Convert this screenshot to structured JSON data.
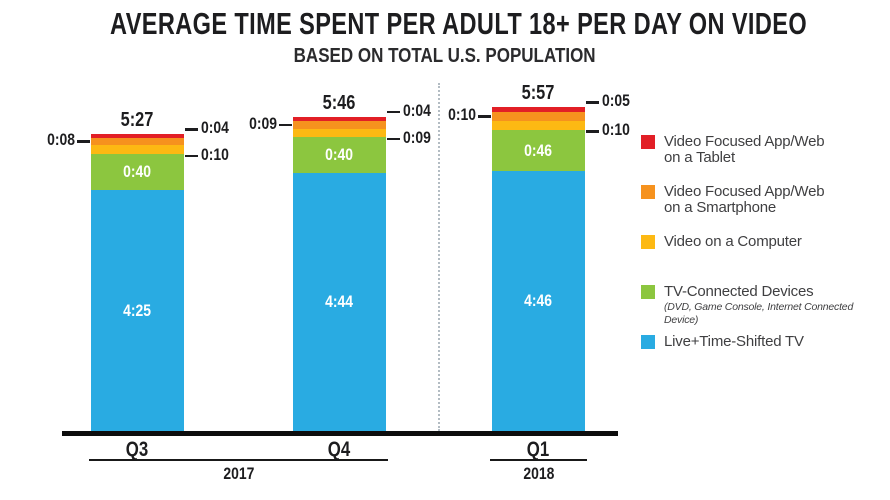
{
  "title": "AVERAGE TIME SPENT PER ADULT 18+ PER DAY ON VIDEO",
  "subtitle": "BASED ON TOTAL U.S. POPULATION",
  "chart_data": {
    "type": "stacked-bar",
    "value_format": "h:mm",
    "categories": [
      "Q3",
      "Q4",
      "Q1"
    ],
    "totals": [
      "5:27",
      "5:46",
      "5:57"
    ],
    "year_groups": [
      {
        "label": "2017",
        "from": 0,
        "to": 1
      },
      {
        "label": "2018",
        "from": 2,
        "to": 2
      }
    ],
    "series": [
      {
        "name": "Live+Time-Shifted TV",
        "color": "#29ABE2",
        "values": [
          "4:25",
          "4:44",
          "4:46"
        ],
        "label_placement": "inside"
      },
      {
        "name": "TV-Connected Devices",
        "color": "#8CC63F",
        "values": [
          "0:40",
          "0:40",
          "0:46"
        ],
        "label_placement": "inside"
      },
      {
        "name": "Video on a Computer",
        "color": "#FDB913",
        "values": [
          "0:10",
          "0:09",
          "0:10"
        ],
        "label_placement": "right"
      },
      {
        "name": "Video Focused App/Web on a Smartphone",
        "color": "#F6921E",
        "values": [
          "0:08",
          "0:09",
          "0:10"
        ],
        "label_placement": "left"
      },
      {
        "name": "Video Focused App/Web on a Tablet",
        "color": "#E21F26",
        "values": [
          "0:04",
          "0:04",
          "0:05"
        ],
        "label_placement": "right"
      }
    ],
    "legend": [
      {
        "color": "#E21F26",
        "lines": [
          "Video Focused App/Web",
          "on a Tablet"
        ],
        "note": ""
      },
      {
        "color": "#F6921E",
        "lines": [
          "Video Focused App/Web",
          "on a Smartphone"
        ],
        "note": ""
      },
      {
        "color": "#FDB913",
        "lines": [
          "Video on a Computer"
        ],
        "note": ""
      },
      {
        "color": "#8CC63F",
        "lines": [
          "TV-Connected Devices"
        ],
        "note": "(DVD, Game Console, Internet Connected Device)"
      },
      {
        "color": "#29ABE2",
        "lines": [
          "Live+Time-Shifted TV"
        ],
        "note": ""
      }
    ],
    "legend_position": "right",
    "grid": false,
    "axis_color": "#0d0d0d",
    "text_color": "#1d1d1f"
  }
}
